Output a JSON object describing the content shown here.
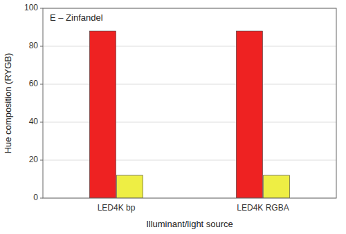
{
  "chart_data": {
    "type": "bar",
    "categories": [
      "LED4K bp",
      "LED4K RGBA"
    ],
    "series": [
      {
        "color": "#ee2222",
        "values": [
          88,
          88
        ]
      },
      {
        "color": "#eeee44",
        "values": [
          12,
          12
        ]
      }
    ],
    "xlabel": "Illuminant/light source",
    "ylabel": "Hue composition (RYGB)",
    "annotation": "E – Zinfandel",
    "ylim": [
      0,
      100
    ],
    "yticks": [
      0,
      20,
      40,
      60,
      80,
      100
    ],
    "grid": true
  }
}
